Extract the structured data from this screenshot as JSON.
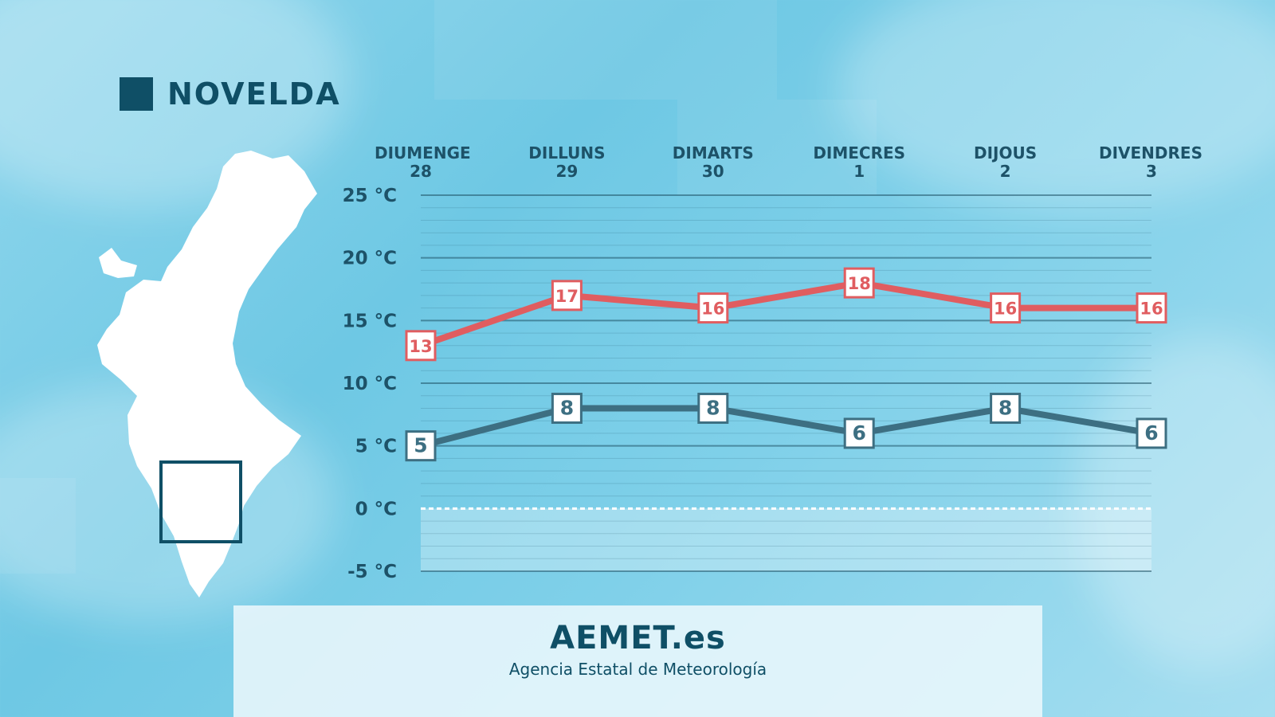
{
  "title": "NOVELDA",
  "footer": {
    "brand": "AEMET.es",
    "subtitle": "Agencia Estatal de Meteorología"
  },
  "colors": {
    "max": "#e05d60",
    "min": "#3d6f82",
    "text": "#1d5268",
    "dark": "#0f4f66"
  },
  "icons": {
    "map": "valencia-region-map",
    "locator": "location-frame"
  },
  "chart_data": {
    "type": "line",
    "title": "NOVELDA",
    "categories": [
      {
        "day": "DIUMENGE",
        "date": "28"
      },
      {
        "day": "DILLUNS",
        "date": "29"
      },
      {
        "day": "DIMARTS",
        "date": "30"
      },
      {
        "day": "DIMECRES",
        "date": "1"
      },
      {
        "day": "DIJOUS",
        "date": "2"
      },
      {
        "day": "DIVENDRES",
        "date": "3"
      }
    ],
    "series": [
      {
        "name": "max",
        "values": [
          13,
          17,
          16,
          18,
          16,
          16
        ]
      },
      {
        "name": "min",
        "values": [
          5,
          8,
          8,
          6,
          8,
          6
        ]
      }
    ],
    "ylim": [
      -5,
      25
    ],
    "yticks": [
      25,
      20,
      15,
      10,
      5,
      0,
      -5
    ],
    "ytick_labels": [
      "25 °C",
      "20 °C",
      "15 °C",
      "10 °C",
      "5 °C",
      "0 °C",
      "-5 °C"
    ],
    "xlabel": "",
    "ylabel": "",
    "grid": true
  }
}
